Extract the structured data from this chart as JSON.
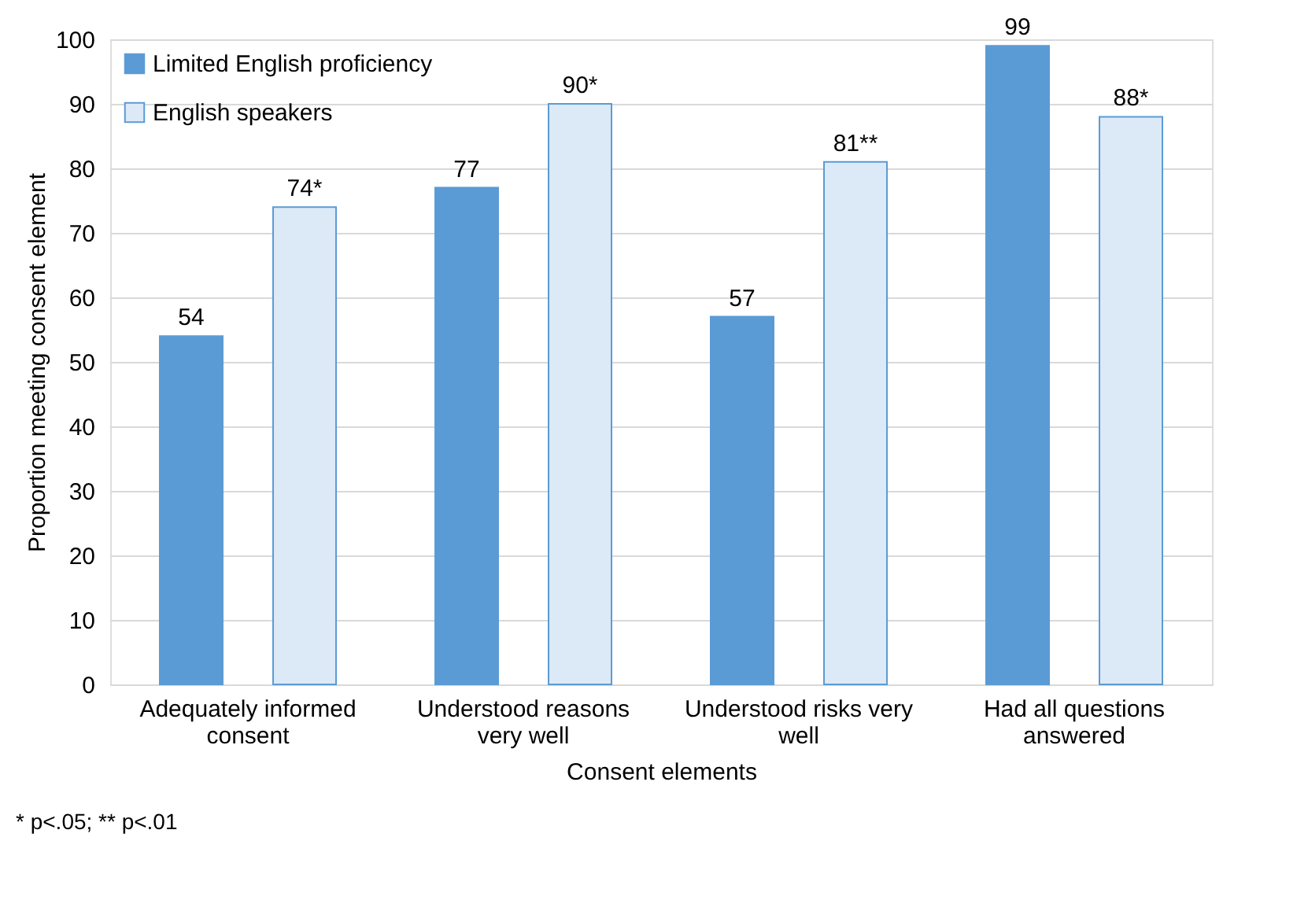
{
  "chart_data": {
    "type": "bar",
    "xlabel": "Consent elements",
    "ylabel": "Proportion meeting consent element",
    "categories": [
      "Adequately informed consent",
      "Understood reasons very well",
      "Understood risks very well",
      "Had all questions answered"
    ],
    "series": [
      {
        "name": "Limited English proficiency",
        "color": "#5b9bd5",
        "values": [
          54,
          77,
          57,
          99
        ],
        "value_labels": [
          "54",
          "77",
          "57",
          "99"
        ]
      },
      {
        "name": "English speakers",
        "color": "#dce9f6",
        "values": [
          74,
          90,
          81,
          88
        ],
        "value_labels": [
          "74*",
          "90*",
          "81**",
          "88*"
        ]
      }
    ],
    "ylim": [
      0,
      100
    ],
    "yticks": [
      0,
      10,
      20,
      30,
      40,
      50,
      60,
      70,
      80,
      90,
      100
    ],
    "grid": "y",
    "legend": "top left",
    "annotations": [
      "* p<.05; ** p<.01"
    ]
  }
}
